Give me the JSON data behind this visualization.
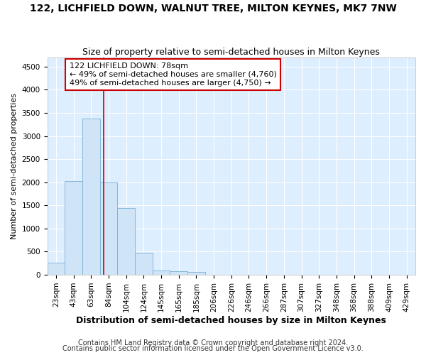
{
  "title1": "122, LICHFIELD DOWN, WALNUT TREE, MILTON KEYNES, MK7 7NW",
  "title2": "Size of property relative to semi-detached houses in Milton Keynes",
  "xlabel": "Distribution of semi-detached houses by size in Milton Keynes",
  "ylabel": "Number of semi-detached properties",
  "footnote1": "Contains HM Land Registry data © Crown copyright and database right 2024.",
  "footnote2": "Contains public sector information licensed under the Open Government Licence v3.0.",
  "categories": [
    "23sqm",
    "43sqm",
    "63sqm",
    "84sqm",
    "104sqm",
    "124sqm",
    "145sqm",
    "165sqm",
    "185sqm",
    "206sqm",
    "226sqm",
    "246sqm",
    "266sqm",
    "287sqm",
    "307sqm",
    "327sqm",
    "348sqm",
    "368sqm",
    "388sqm",
    "409sqm",
    "429sqm"
  ],
  "values": [
    255,
    2030,
    3370,
    2000,
    1450,
    480,
    100,
    80,
    65,
    0,
    0,
    0,
    0,
    0,
    0,
    0,
    0,
    0,
    0,
    0,
    0
  ],
  "bar_color": "#d0e4f7",
  "bar_edge_color": "#7bafd4",
  "highlight_color": "#cc0000",
  "annotation_text": "122 LICHFIELD DOWN: 78sqm\n← 49% of semi-detached houses are smaller (4,760)\n49% of semi-detached houses are larger (4,750) →",
  "annotation_box_color": "#ffffff",
  "annotation_border_color": "#cc0000",
  "ylim": [
    0,
    4700
  ],
  "yticks": [
    0,
    500,
    1000,
    1500,
    2000,
    2500,
    3000,
    3500,
    4000,
    4500
  ],
  "fig_background_color": "#ffffff",
  "plot_background_color": "#ddeeff",
  "grid_color": "#ffffff",
  "title1_fontsize": 10,
  "title2_fontsize": 9,
  "xlabel_fontsize": 9,
  "ylabel_fontsize": 8,
  "tick_fontsize": 7.5,
  "annotation_fontsize": 8,
  "footnote_fontsize": 7
}
